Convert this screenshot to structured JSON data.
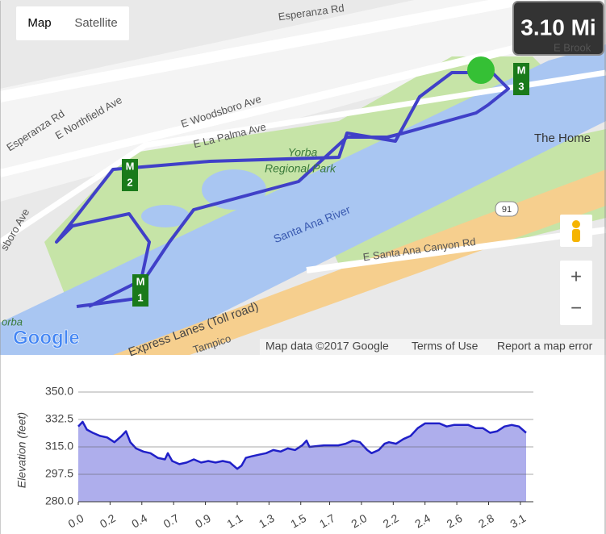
{
  "map": {
    "buttons": [
      "Map",
      "Satellite"
    ],
    "distance": "3.10 Mi",
    "labels": {
      "esperanza_top": "Esperanza Rd",
      "esperanza_left": "Esperanza Rd",
      "northfield": "E Northfield Ave",
      "woodsboro": "E Woodsboro Ave",
      "la_palma": "E La Palma Ave",
      "park_1": "Yorba",
      "park_2": "Regional Park",
      "river": "Santa Ana River",
      "canyon": "E Santa Ana Canyon Rd",
      "toll": "Express Lanes (Toll road)",
      "home": "The Home",
      "route_91": "91",
      "tampico": "Tampico",
      "brook": "E Brook",
      "sboro": "sboro Ave",
      "orba": "orba"
    },
    "markers": [
      [
        "M",
        "1"
      ],
      [
        "M",
        "2"
      ],
      [
        "M",
        "3"
      ]
    ],
    "logo": "Google",
    "zoom": [
      "+",
      "−"
    ],
    "footer": [
      "Map data ©2017 Google",
      "Terms of Use",
      "Report a map error"
    ]
  },
  "chart_data": {
    "type": "area",
    "y_label": "Elevation (feet)",
    "xlim": [
      0,
      3.15
    ],
    "ylim": [
      280,
      350
    ],
    "yticks": [
      {
        "value": 280,
        "label": "280.0"
      },
      {
        "value": 297.5,
        "label": "297.5"
      },
      {
        "value": 315,
        "label": "315.0"
      },
      {
        "value": 332.5,
        "label": "332.5"
      },
      {
        "value": 350,
        "label": "350.0"
      }
    ],
    "xticks": [
      {
        "value": 0,
        "label": "0.0"
      },
      {
        "value": 0.22,
        "label": "0.2"
      },
      {
        "value": 0.44,
        "label": "0.4"
      },
      {
        "value": 0.66,
        "label": "0.7"
      },
      {
        "value": 0.88,
        "label": "0.9"
      },
      {
        "value": 1.1,
        "label": "1.1"
      },
      {
        "value": 1.32,
        "label": "1.3"
      },
      {
        "value": 1.54,
        "label": "1.5"
      },
      {
        "value": 1.74,
        "label": "1.7"
      },
      {
        "value": 1.96,
        "label": "2.0"
      },
      {
        "value": 2.18,
        "label": "2.2"
      },
      {
        "value": 2.4,
        "label": "2.4"
      },
      {
        "value": 2.62,
        "label": "2.6"
      },
      {
        "value": 2.84,
        "label": "2.8"
      },
      {
        "value": 3.06,
        "label": "3.1"
      }
    ],
    "grid": true,
    "line_color": "#2020c8",
    "fill_color": "#aeaeec",
    "x": [
      0,
      0.03,
      0.06,
      0.1,
      0.15,
      0.2,
      0.25,
      0.3,
      0.33,
      0.36,
      0.4,
      0.45,
      0.5,
      0.55,
      0.6,
      0.62,
      0.65,
      0.7,
      0.75,
      0.8,
      0.85,
      0.9,
      0.95,
      1.0,
      1.05,
      1.1,
      1.13,
      1.16,
      1.2,
      1.25,
      1.3,
      1.35,
      1.4,
      1.45,
      1.5,
      1.55,
      1.58,
      1.6,
      1.7,
      1.8,
      1.85,
      1.9,
      1.95,
      2.0,
      2.03,
      2.08,
      2.12,
      2.15,
      2.2,
      2.25,
      2.3,
      2.35,
      2.4,
      2.5,
      2.55,
      2.6,
      2.7,
      2.75,
      2.8,
      2.85,
      2.9,
      2.95,
      3.0,
      3.05,
      3.1
    ],
    "values": [
      328,
      331,
      326,
      324,
      322,
      321,
      318,
      322,
      325,
      318,
      314,
      312,
      311,
      308,
      307,
      311,
      306,
      304,
      305,
      307,
      305,
      306,
      305,
      306,
      305,
      301,
      303,
      308,
      309,
      310,
      311,
      313,
      312,
      314,
      313,
      316,
      319,
      315,
      316,
      316,
      317,
      319,
      318,
      313,
      311,
      313,
      317,
      318,
      317,
      320,
      322,
      327,
      330,
      330,
      328,
      329,
      329,
      327,
      327,
      324,
      325,
      328,
      329,
      328,
      324
    ]
  }
}
